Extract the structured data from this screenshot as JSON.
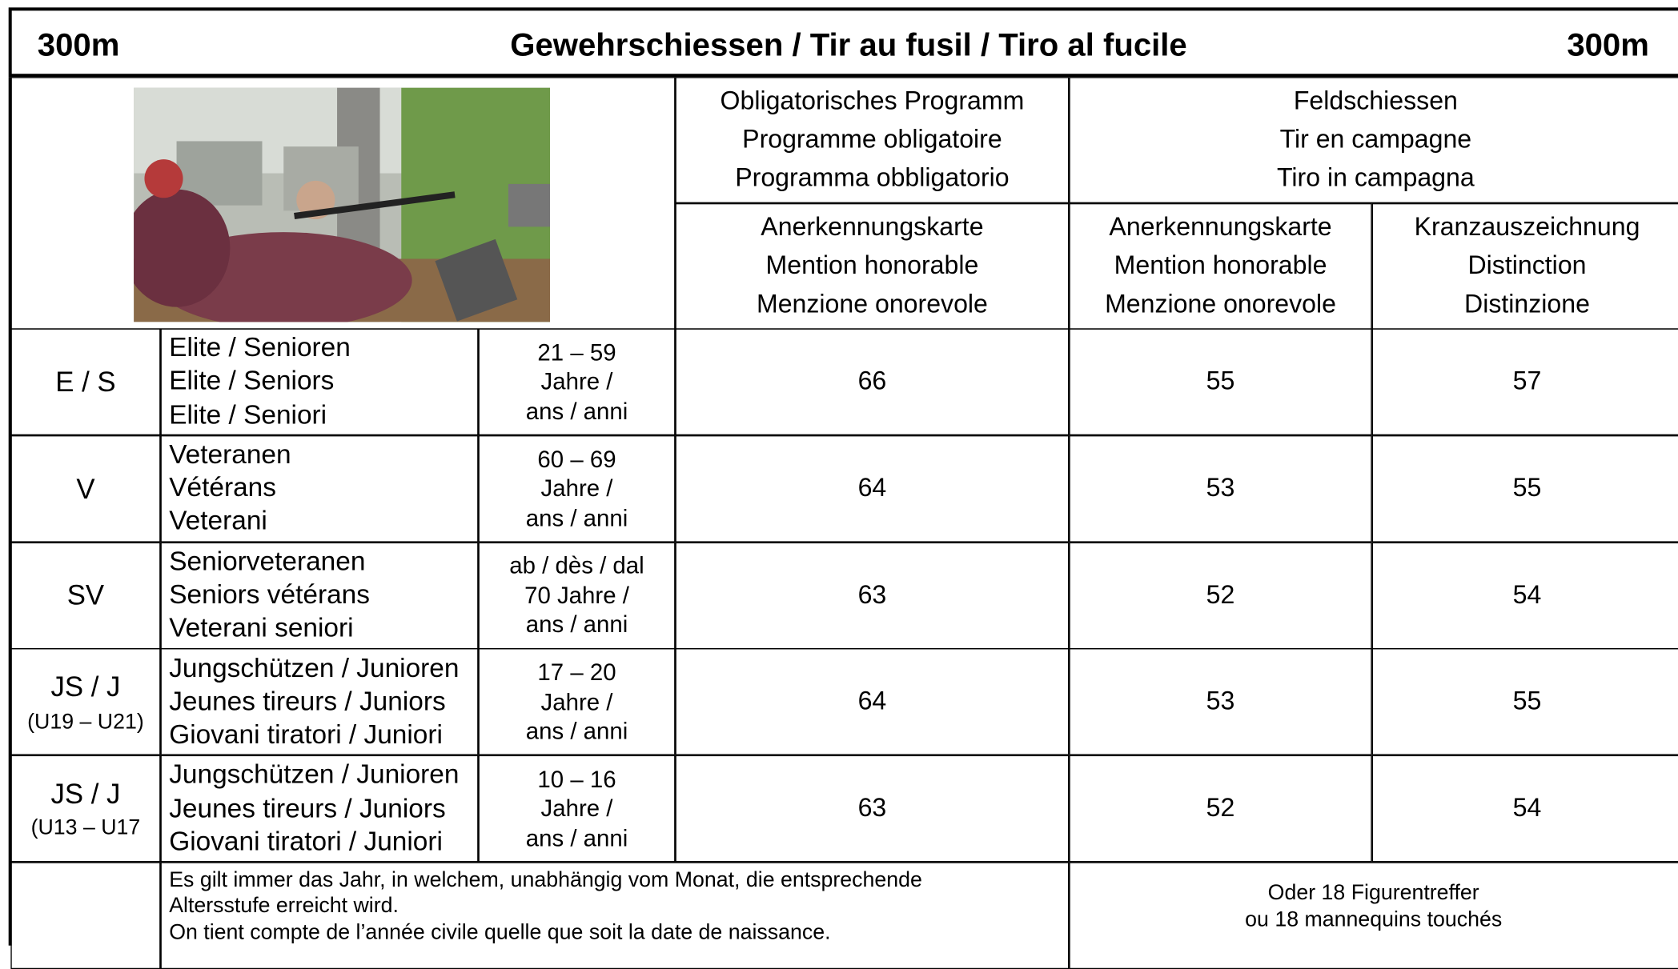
{
  "header": {
    "left": "300m",
    "title": "Gewehrschiessen / Tir au fusil / Tiro al fucile",
    "right": "300m"
  },
  "table": {
    "groups": {
      "obligatory": [
        "Obligatorisches Programm",
        "Programme obligatoire",
        "Programma obbligatorio"
      ],
      "field": [
        "Feldschiessen",
        "Tir en campagne",
        "Tiro in campagna"
      ]
    },
    "columns": {
      "obligatory_award": [
        "Anerkennungskarte",
        "Mention honorable",
        "Menzione onorevole"
      ],
      "field_award": [
        "Anerkennungskarte",
        "Mention honorable",
        "Menzione onorevole"
      ],
      "field_wreath": [
        "Kranzauszeichnung",
        "Distinction",
        "Distinzione"
      ]
    },
    "rows": [
      {
        "code": [
          "E / S"
        ],
        "category": [
          "Elite / Senioren",
          "Elite / Seniors",
          "Elite / Seniori"
        ],
        "age": [
          "21 – 59",
          "Jahre /",
          "ans / anni"
        ],
        "obligatory_award": 66,
        "field_award": 55,
        "field_wreath": 57
      },
      {
        "code": [
          "V"
        ],
        "category": [
          "Veteranen",
          "Vétérans",
          "Veterani"
        ],
        "age": [
          "60 – 69",
          "Jahre /",
          "ans / anni"
        ],
        "obligatory_award": 64,
        "field_award": 53,
        "field_wreath": 55
      },
      {
        "code": [
          "SV"
        ],
        "category": [
          "Seniorveteranen",
          "Seniors vétérans",
          "Veterani seniori"
        ],
        "age": [
          "ab / dès / dal",
          "70 Jahre /",
          "ans / anni"
        ],
        "obligatory_award": 63,
        "field_award": 52,
        "field_wreath": 54
      },
      {
        "code": [
          "JS / J",
          "(U19 – U21)"
        ],
        "category": [
          "Jungschützen / Junioren",
          "Jeunes tireurs / Juniors",
          "Giovani tiratori / Juniori"
        ],
        "age": [
          "17 – 20",
          "Jahre /",
          "ans / anni"
        ],
        "obligatory_award": 64,
        "field_award": 53,
        "field_wreath": 55
      },
      {
        "code": [
          "JS / J",
          "(U13 – U17"
        ],
        "category": [
          "Jungschützen / Junioren",
          "Jeunes tireurs / Juniors",
          "Giovani tiratori / Juniori"
        ],
        "age": [
          "10 – 16",
          "Jahre /",
          "ans / anni"
        ],
        "obligatory_award": 63,
        "field_award": 52,
        "field_wreath": 54
      }
    ],
    "footer": {
      "note": [
        "Es gilt immer das Jahr, in welchem, unabhängig vom Monat, die entsprechende",
        "Altersstufe erreicht wird.",
        "On tient compte de l’année civile quelle que soit la date de naissance."
      ],
      "alternative": [
        "Oder 18 Figurentreffer",
        "ou 18 mannequins touchés"
      ]
    }
  }
}
